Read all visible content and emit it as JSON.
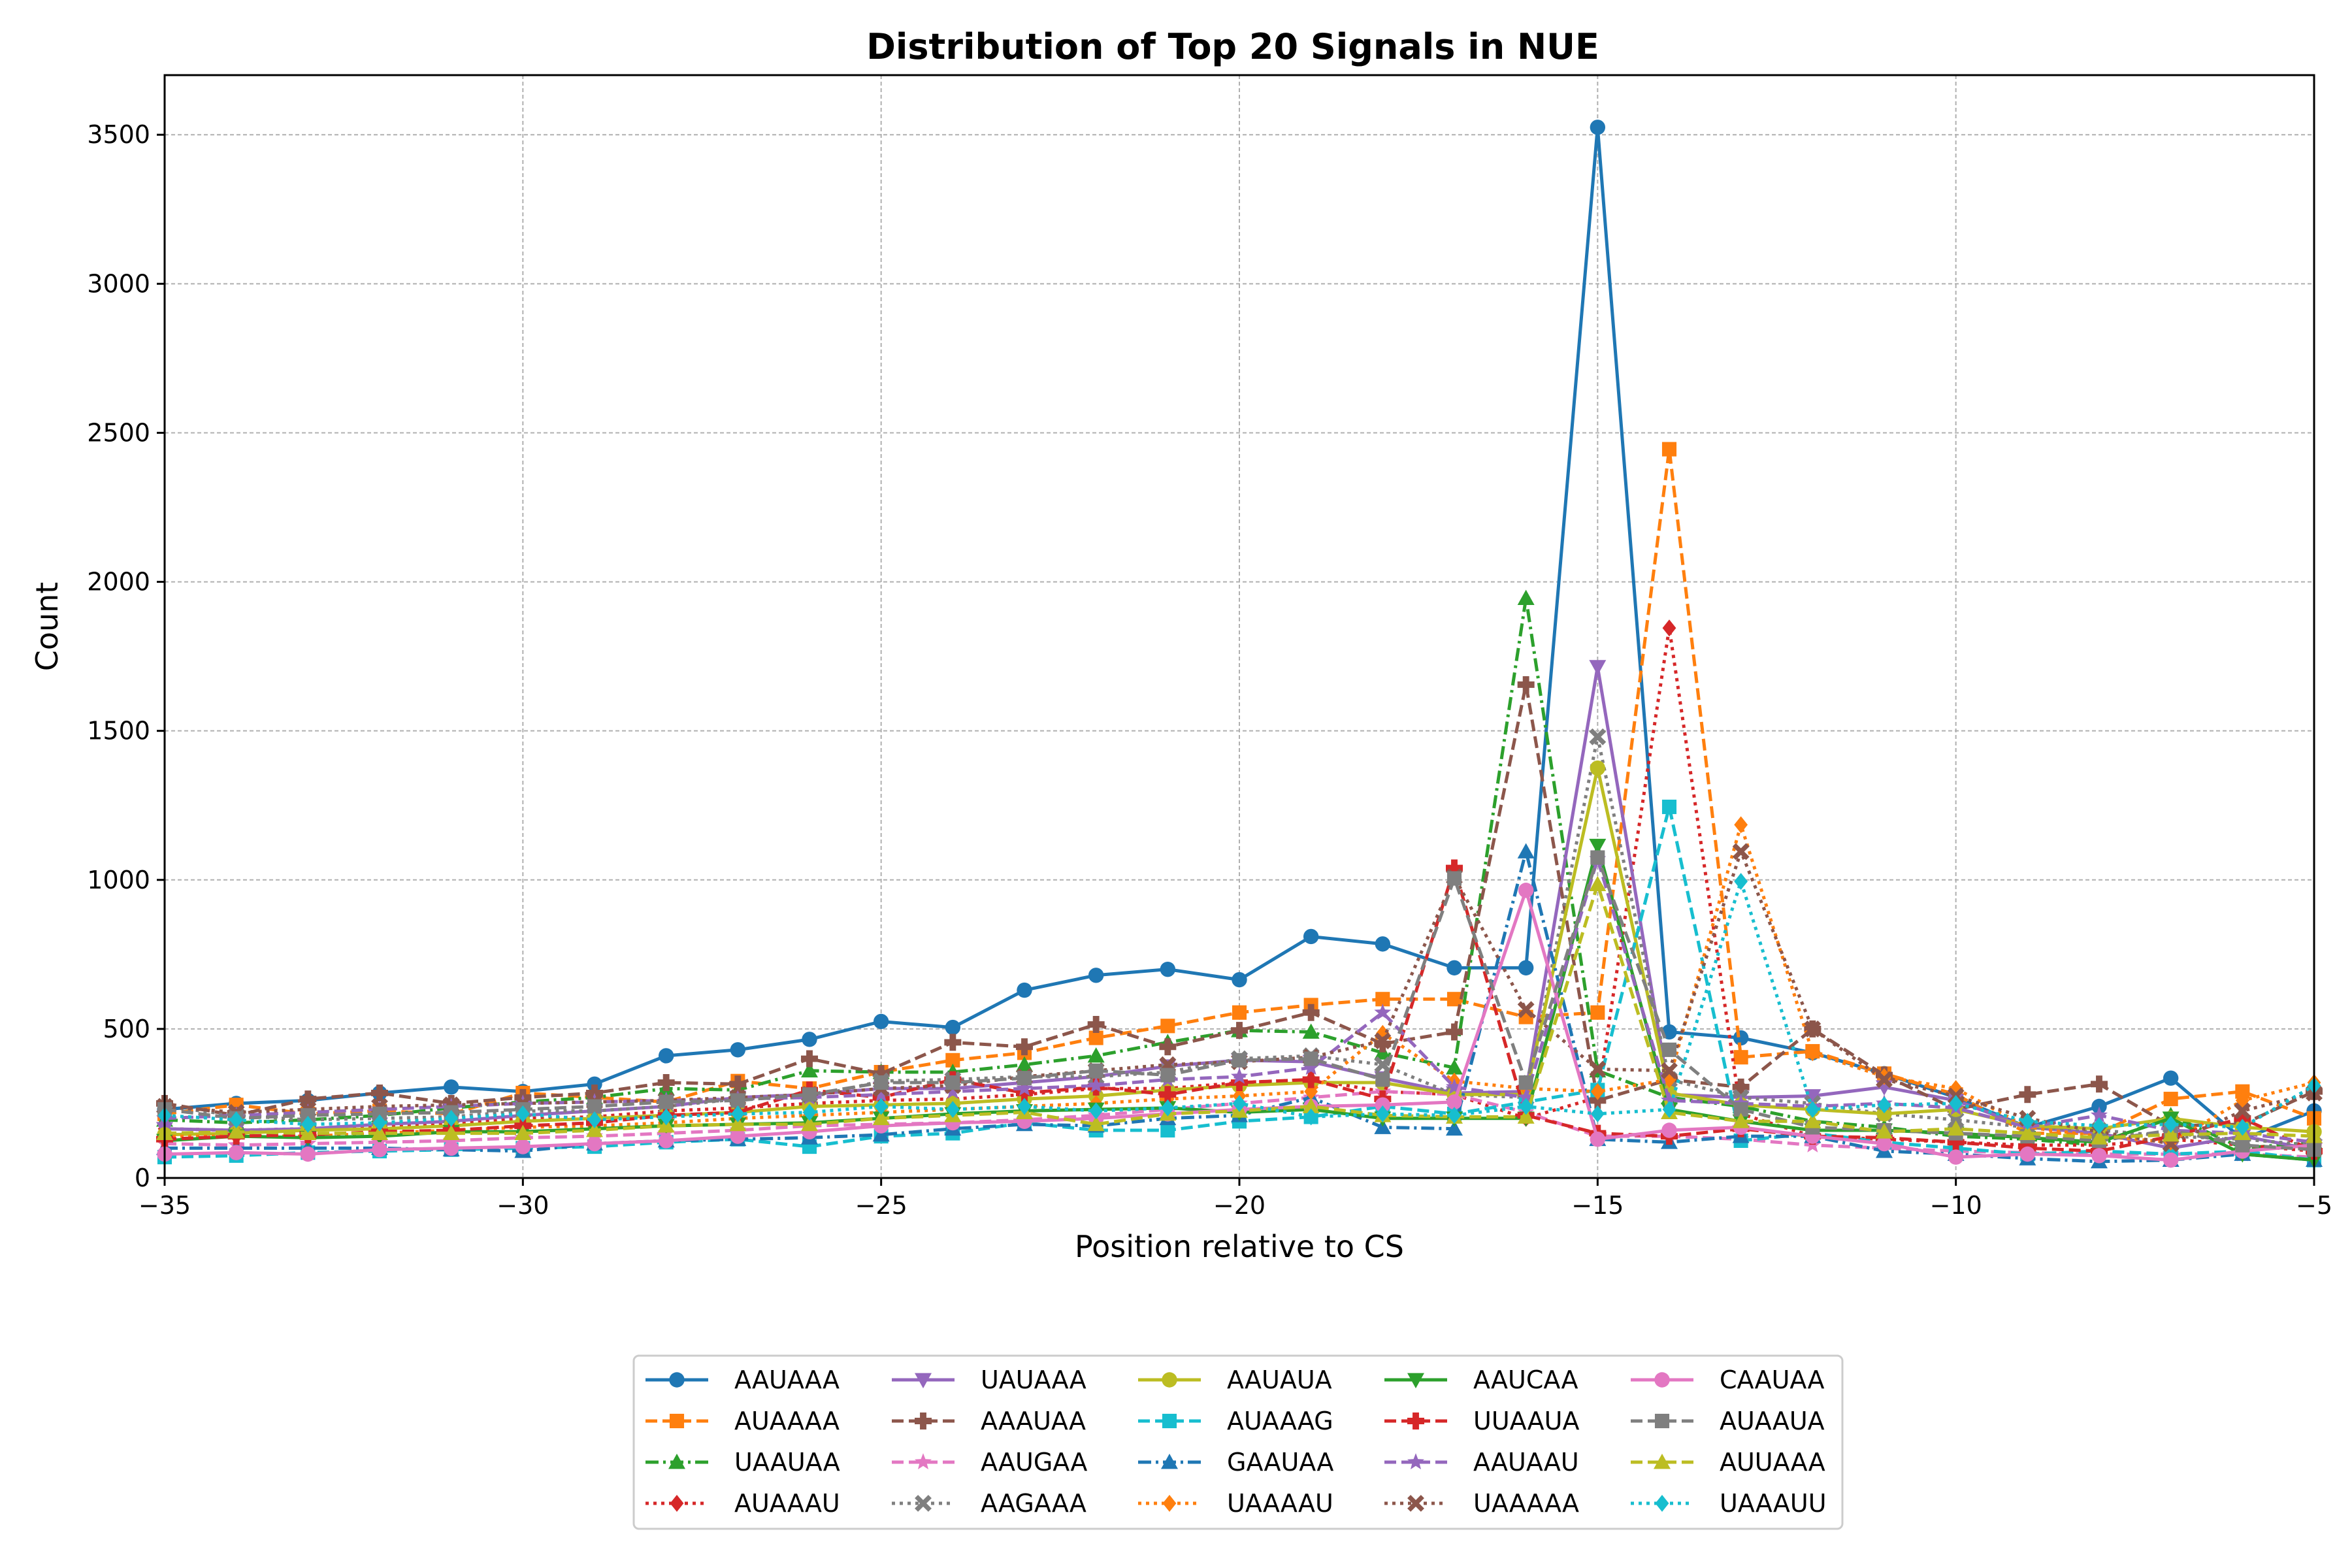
{
  "chart_data": {
    "type": "line",
    "title": "Distribution of Top 20 Signals in NUE",
    "xlabel": "Position relative to CS",
    "ylabel": "Count",
    "xlim": [
      -35,
      -5
    ],
    "ylim": [
      0,
      3700
    ],
    "xticks": [
      -35,
      -30,
      -25,
      -20,
      -15,
      -10,
      -5
    ],
    "xtick_labels": [
      "−35",
      "−30",
      "−25",
      "−20",
      "−15",
      "−10",
      "−5"
    ],
    "yticks": [
      0,
      500,
      1000,
      1500,
      2000,
      2500,
      3000,
      3500
    ],
    "ytick_labels": [
      "0",
      "500",
      "1000",
      "1500",
      "2000",
      "2500",
      "3000",
      "3500"
    ],
    "grid": true,
    "legend_position": "bottom-center",
    "x": [
      -35,
      -34,
      -33,
      -32,
      -31,
      -30,
      -29,
      -28,
      -27,
      -26,
      -25,
      -24,
      -23,
      -22,
      -21,
      -20,
      -19,
      -18,
      -17,
      -16,
      -15,
      -14,
      -13,
      -12,
      -11,
      -10,
      -9,
      -8,
      -7,
      -6,
      -5
    ],
    "series": [
      {
        "name": "AAUAAA",
        "color": "#1f77b4",
        "dash": "solid",
        "marker": "circle",
        "values": [
          230,
          250,
          260,
          285,
          305,
          290,
          315,
          410,
          430,
          465,
          525,
          505,
          630,
          680,
          700,
          665,
          810,
          785,
          705,
          705,
          3525,
          490,
          470,
          420,
          350,
          270,
          170,
          240,
          335,
          130,
          225
        ]
      },
      {
        "name": "AUAAAA",
        "color": "#ff7f0e",
        "dash": "dashed",
        "marker": "square",
        "values": [
          215,
          245,
          215,
          225,
          215,
          285,
          270,
          255,
          325,
          300,
          355,
          395,
          420,
          470,
          510,
          555,
          580,
          600,
          600,
          540,
          555,
          2445,
          405,
          425,
          350,
          280,
          150,
          150,
          265,
          290,
          200
        ]
      },
      {
        "name": "UAAUAA",
        "color": "#2ca02c",
        "dash": "dashdot",
        "marker": "triangle-up",
        "values": [
          195,
          185,
          195,
          210,
          235,
          255,
          270,
          300,
          295,
          360,
          355,
          355,
          380,
          410,
          455,
          495,
          490,
          420,
          370,
          1945,
          360,
          270,
          240,
          190,
          170,
          140,
          130,
          110,
          210,
          100,
          120
        ]
      },
      {
        "name": "AUAAAU",
        "color": "#d62728",
        "dash": "dotted",
        "marker": "diamond",
        "values": [
          165,
          160,
          165,
          175,
          185,
          200,
          205,
          225,
          235,
          250,
          260,
          265,
          280,
          300,
          300,
          320,
          330,
          290,
          280,
          200,
          270,
          1845,
          215,
          140,
          130,
          120,
          110,
          110,
          130,
          110,
          90
        ]
      },
      {
        "name": "UAUAAA",
        "color": "#9467bd",
        "dash": "solid",
        "marker": "triangle-down",
        "values": [
          165,
          160,
          165,
          180,
          190,
          210,
          225,
          240,
          270,
          280,
          300,
          300,
          320,
          340,
          375,
          395,
          390,
          335,
          285,
          290,
          1715,
          280,
          270,
          275,
          305,
          260,
          170,
          150,
          100,
          140,
          95
        ]
      },
      {
        "name": "AAAUAA",
        "color": "#8c564b",
        "dash": "dashed",
        "marker": "plus",
        "values": [
          250,
          210,
          265,
          285,
          250,
          270,
          285,
          320,
          315,
          400,
          350,
          455,
          440,
          515,
          440,
          495,
          555,
          450,
          490,
          1655,
          260,
          330,
          305,
          500,
          345,
          230,
          280,
          315,
          175,
          180,
          290
        ]
      },
      {
        "name": "AAUGAA",
        "color": "#e377c2",
        "dash": "dashed",
        "marker": "star",
        "values": [
          115,
          110,
          115,
          120,
          125,
          135,
          140,
          150,
          160,
          175,
          180,
          185,
          195,
          210,
          230,
          250,
          270,
          290,
          280,
          220,
          140,
          140,
          130,
          110,
          100,
          90,
          85,
          80,
          80,
          80,
          70
        ]
      },
      {
        "name": "AAGAAA",
        "color": "#7f7f7f",
        "dash": "dotted",
        "marker": "x",
        "values": [
          240,
          210,
          195,
          200,
          205,
          225,
          225,
          240,
          265,
          270,
          325,
          330,
          340,
          340,
          355,
          400,
          410,
          380,
          280,
          270,
          1480,
          330,
          270,
          250,
          215,
          195,
          170,
          160,
          140,
          130,
          110
        ]
      },
      {
        "name": "AAUAUA",
        "color": "#bcbd22",
        "dash": "solid",
        "marker": "circle",
        "values": [
          145,
          150,
          160,
          165,
          175,
          190,
          200,
          210,
          220,
          240,
          245,
          250,
          265,
          275,
          295,
          310,
          320,
          320,
          280,
          280,
          1375,
          285,
          245,
          230,
          215,
          230,
          175,
          165,
          200,
          170,
          155
        ]
      },
      {
        "name": "AUAAAG",
        "color": "#17becf",
        "dash": "dashed",
        "marker": "square",
        "values": [
          70,
          75,
          85,
          90,
          95,
          100,
          105,
          120,
          130,
          105,
          140,
          150,
          185,
          160,
          160,
          190,
          205,
          240,
          215,
          255,
          295,
          1245,
          125,
          150,
          120,
          100,
          80,
          90,
          80,
          90,
          60
        ]
      },
      {
        "name": "GAAUAA",
        "color": "#1f77b4",
        "dash": "dashdot",
        "marker": "triangle-up",
        "values": [
          100,
          100,
          100,
          100,
          95,
          90,
          115,
          125,
          130,
          135,
          145,
          165,
          180,
          175,
          200,
          210,
          270,
          170,
          165,
          1095,
          130,
          120,
          140,
          140,
          90,
          80,
          65,
          55,
          60,
          80,
          60
        ]
      },
      {
        "name": "UAAAAU",
        "color": "#ff7f0e",
        "dash": "dotted",
        "marker": "diamond",
        "values": [
          140,
          140,
          140,
          150,
          160,
          170,
          175,
          185,
          200,
          210,
          220,
          230,
          240,
          250,
          265,
          275,
          290,
          485,
          325,
          300,
          290,
          330,
          1185,
          420,
          340,
          300,
          170,
          140,
          120,
          260,
          320
        ]
      },
      {
        "name": "AAUCAA",
        "color": "#2ca02c",
        "dash": "solid",
        "marker": "triangle-down",
        "values": [
          125,
          140,
          135,
          140,
          155,
          155,
          165,
          175,
          180,
          185,
          200,
          215,
          225,
          230,
          235,
          220,
          230,
          200,
          200,
          200,
          1115,
          230,
          190,
          160,
          160,
          150,
          135,
          120,
          200,
          80,
          60
        ]
      },
      {
        "name": "UUAAUA",
        "color": "#d62728",
        "dash": "dashed",
        "marker": "plus",
        "values": [
          130,
          140,
          145,
          155,
          160,
          175,
          185,
          210,
          220,
          295,
          270,
          330,
          285,
          305,
          280,
          320,
          330,
          265,
          1040,
          210,
          150,
          140,
          165,
          140,
          135,
          120,
          100,
          90,
          140,
          200,
          90
        ]
      },
      {
        "name": "AAUAAU",
        "color": "#9467bd",
        "dash": "dashed",
        "marker": "star",
        "values": [
          200,
          210,
          220,
          230,
          240,
          250,
          255,
          260,
          265,
          270,
          280,
          290,
          300,
          310,
          330,
          340,
          370,
          555,
          305,
          270,
          1070,
          260,
          250,
          240,
          250,
          235,
          170,
          210,
          160,
          150,
          120
        ]
      },
      {
        "name": "UAAAAA",
        "color": "#8c564b",
        "dash": "dotted",
        "marker": "x",
        "values": [
          240,
          220,
          230,
          240,
          245,
          250,
          255,
          260,
          270,
          280,
          300,
          310,
          340,
          360,
          380,
          390,
          405,
          460,
          1010,
          565,
          365,
          360,
          1095,
          500,
          330,
          275,
          200,
          155,
          115,
          225,
          285
        ]
      },
      {
        "name": "CAAUAA",
        "color": "#e377c2",
        "dash": "solid",
        "marker": "circle",
        "values": [
          80,
          85,
          80,
          95,
          100,
          105,
          115,
          125,
          140,
          155,
          175,
          185,
          190,
          200,
          215,
          230,
          240,
          245,
          255,
          965,
          130,
          160,
          170,
          140,
          115,
          70,
          80,
          75,
          60,
          90,
          110
        ]
      },
      {
        "name": "AUAAUA",
        "color": "#7f7f7f",
        "dash": "dashed",
        "marker": "square",
        "values": [
          230,
          200,
          210,
          215,
          220,
          230,
          240,
          255,
          260,
          280,
          320,
          320,
          335,
          360,
          345,
          395,
          400,
          330,
          1005,
          320,
          1075,
          430,
          230,
          170,
          160,
          150,
          140,
          125,
          160,
          110,
          95
        ]
      },
      {
        "name": "AUUAAA",
        "color": "#bcbd22",
        "dash": "dashed",
        "marker": "triangle-up",
        "values": [
          150,
          155,
          150,
          150,
          150,
          150,
          160,
          175,
          180,
          180,
          200,
          210,
          220,
          180,
          215,
          225,
          240,
          210,
          205,
          205,
          985,
          220,
          190,
          190,
          155,
          165,
          150,
          135,
          145,
          150,
          140
        ]
      },
      {
        "name": "UAAAUU",
        "color": "#17becf",
        "dash": "dotted",
        "marker": "diamond",
        "values": [
          210,
          195,
          180,
          185,
          200,
          215,
          195,
          205,
          215,
          220,
          240,
          230,
          240,
          225,
          235,
          250,
          205,
          215,
          210,
          240,
          215,
          230,
          995,
          230,
          245,
          250,
          190,
          175,
          180,
          170,
          310
        ]
      }
    ]
  }
}
